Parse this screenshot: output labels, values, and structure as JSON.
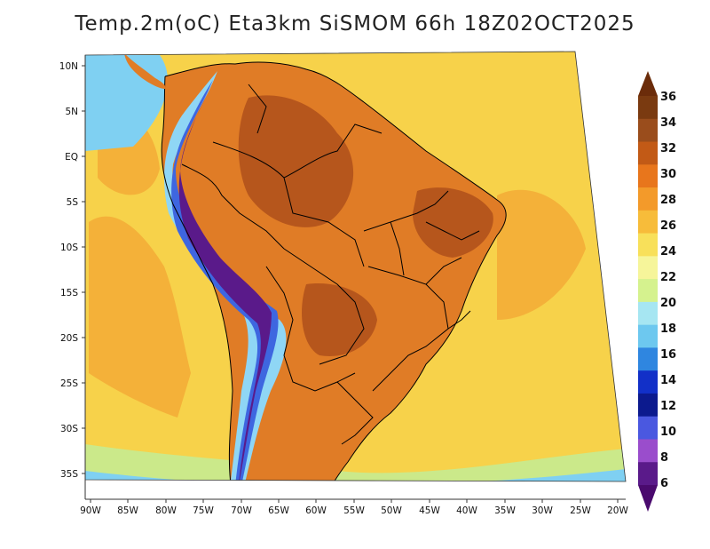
{
  "title": "Temp.2m(oC) Eta3km SiSMOM 66h 18Z02OCT2025",
  "lat_labels": [
    "10N",
    "5N",
    "EQ",
    "5S",
    "10S",
    "15S",
    "20S",
    "25S",
    "30S",
    "35S"
  ],
  "lon_labels": [
    "90W",
    "85W",
    "80W",
    "75W",
    "70W",
    "65W",
    "60W",
    "55W",
    "50W",
    "45W",
    "40W",
    "35W",
    "30W",
    "25W",
    "20W"
  ],
  "colorbar": {
    "labels": [
      "36",
      "34",
      "32",
      "30",
      "28",
      "26",
      "24",
      "22",
      "20",
      "18",
      "16",
      "14",
      "12",
      "10",
      "8",
      "6"
    ],
    "colors": [
      "#7a3a10",
      "#9a4d1c",
      "#c25a16",
      "#e8761c",
      "#f39a2a",
      "#f7bc3a",
      "#f8e05a",
      "#f6f59a",
      "#d5f28e",
      "#a6e6f2",
      "#6dc8ef",
      "#2f86e0",
      "#1230c8",
      "#0c1a8e",
      "#4a58e0",
      "#9a4dcc",
      "#5a1a8a"
    ],
    "top_arrow_color": "#6b2c0a",
    "bottom_arrow_color": "#4a0a6e"
  },
  "palette": {
    "ocean": "#f7d24a",
    "ocean_warm": "#f3a634",
    "ocean_cool": "#cbe98a",
    "ocean_cold": "#7fd0f2",
    "land": "#e07c26",
    "land_hot": "#a8491a",
    "andes_cold": "#3e66e0",
    "andes_colder": "#5a1a8a",
    "andes_cool": "#8fd6f5",
    "border": "#000000"
  }
}
